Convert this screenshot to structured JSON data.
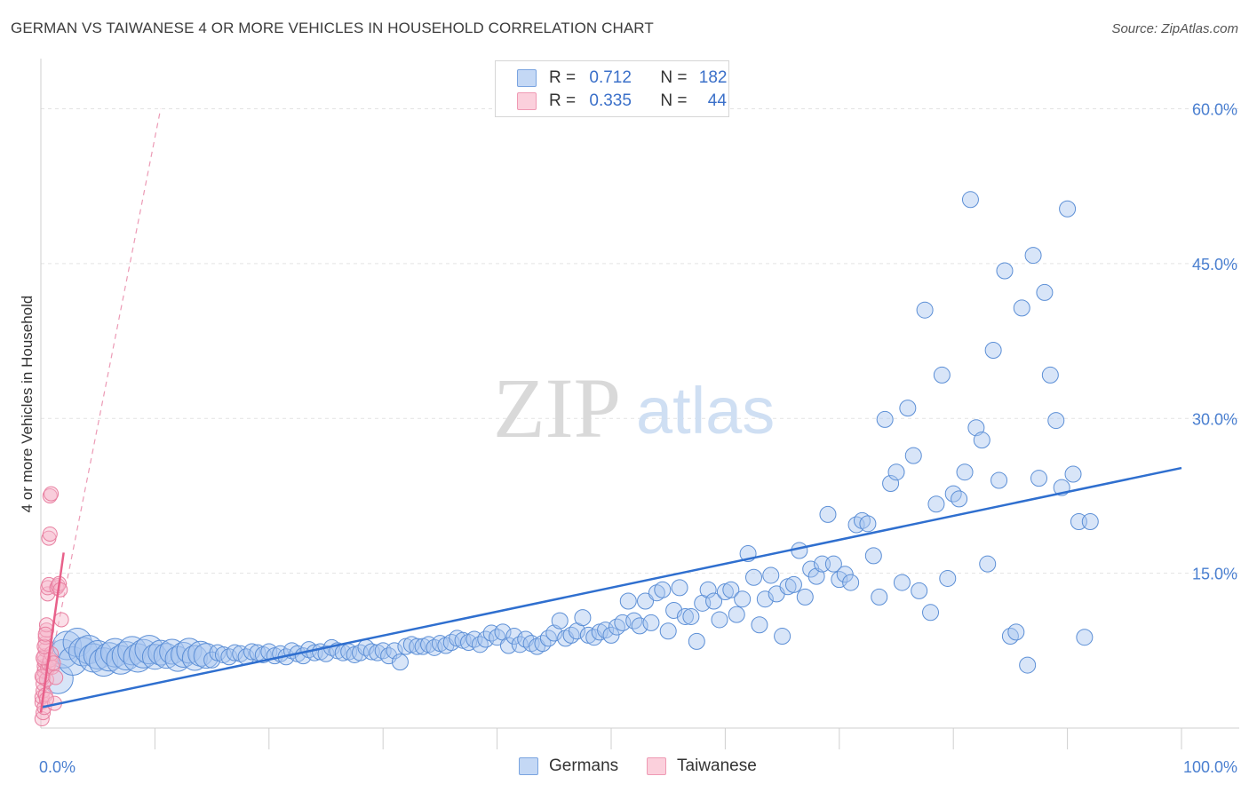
{
  "header": {
    "title": "GERMAN VS TAIWANESE 4 OR MORE VEHICLES IN HOUSEHOLD CORRELATION CHART",
    "source": "Source: ZipAtlas.com"
  },
  "watermark": {
    "zip": "ZIP",
    "atlas": "atlas"
  },
  "legend": {
    "rows": [
      {
        "r_label": "R =",
        "r_value": "0.712",
        "n_label": "N =",
        "n_value": "182",
        "color": "#a9c6f0"
      },
      {
        "r_label": "R =",
        "r_value": "0.335",
        "n_label": "N =",
        "n_value": "44",
        "color": "#f6b8cb"
      }
    ]
  },
  "bottom_legend": [
    {
      "label": "Germans",
      "color": "#a9c6f0"
    },
    {
      "label": "Taiwanese",
      "color": "#f6b8cb"
    }
  ],
  "chart_data": {
    "type": "scatter",
    "xlabel": "",
    "ylabel": "4 or more Vehicles in Household",
    "xlim": [
      0,
      100
    ],
    "ylim": [
      0,
      64
    ],
    "y_ticks": [
      {
        "value": 15,
        "label": "15.0%"
      },
      {
        "value": 30,
        "label": "30.0%"
      },
      {
        "value": 45,
        "label": "45.0%"
      },
      {
        "value": 60,
        "label": "60.0%"
      }
    ],
    "x_tick_labels": [
      {
        "value": 0,
        "label": "0.0%"
      },
      {
        "value": 100,
        "label": "100.0%"
      }
    ],
    "grid": true,
    "series": [
      {
        "name": "Germans",
        "color": "#a9c6f0",
        "stroke": "#5c8fd6",
        "trend": {
          "x": [
            0,
            100
          ],
          "y": [
            2.0,
            25.2
          ],
          "color": "#2f6fcf"
        },
        "points": [
          [
            1.5,
            4.8
          ],
          [
            2.0,
            7.2
          ],
          [
            2.3,
            8.0
          ],
          [
            2.8,
            6.5
          ],
          [
            3.2,
            8.3
          ],
          [
            3.7,
            7.4
          ],
          [
            4.2,
            7.6
          ],
          [
            4.6,
            6.8
          ],
          [
            5.0,
            7.1
          ],
          [
            5.5,
            6.4
          ],
          [
            6.0,
            6.9
          ],
          [
            6.5,
            7.3
          ],
          [
            7.0,
            6.6
          ],
          [
            7.5,
            7.0
          ],
          [
            8.0,
            7.5
          ],
          [
            8.5,
            6.8
          ],
          [
            9.0,
            7.2
          ],
          [
            9.5,
            7.6
          ],
          [
            10.0,
            6.9
          ],
          [
            10.5,
            7.3
          ],
          [
            11.0,
            7.0
          ],
          [
            11.5,
            7.4
          ],
          [
            12.0,
            6.7
          ],
          [
            12.5,
            7.1
          ],
          [
            13.0,
            7.5
          ],
          [
            13.5,
            6.8
          ],
          [
            14.0,
            7.2
          ],
          [
            14.5,
            7.0
          ],
          [
            15.0,
            6.6
          ],
          [
            15.5,
            7.3
          ],
          [
            16.0,
            7.1
          ],
          [
            16.5,
            6.9
          ],
          [
            17.0,
            7.3
          ],
          [
            17.5,
            7.2
          ],
          [
            18.0,
            6.9
          ],
          [
            18.5,
            7.4
          ],
          [
            19.0,
            7.3
          ],
          [
            19.5,
            7.1
          ],
          [
            20.0,
            7.4
          ],
          [
            20.5,
            7.0
          ],
          [
            21.0,
            7.2
          ],
          [
            21.5,
            6.9
          ],
          [
            22.0,
            7.5
          ],
          [
            22.5,
            7.2
          ],
          [
            23.0,
            7.0
          ],
          [
            23.5,
            7.6
          ],
          [
            24.0,
            7.3
          ],
          [
            24.5,
            7.4
          ],
          [
            25.0,
            7.2
          ],
          [
            25.5,
            7.8
          ],
          [
            26.0,
            7.5
          ],
          [
            26.5,
            7.3
          ],
          [
            27.0,
            7.4
          ],
          [
            27.5,
            7.1
          ],
          [
            28.0,
            7.3
          ],
          [
            28.5,
            7.8
          ],
          [
            29.0,
            7.4
          ],
          [
            29.5,
            7.3
          ],
          [
            30.0,
            7.5
          ],
          [
            30.5,
            7.0
          ],
          [
            31.0,
            7.5
          ],
          [
            31.5,
            6.4
          ],
          [
            32.0,
            7.9
          ],
          [
            32.5,
            8.1
          ],
          [
            33.0,
            7.9
          ],
          [
            33.5,
            7.9
          ],
          [
            34.0,
            8.1
          ],
          [
            34.5,
            7.8
          ],
          [
            35.0,
            8.2
          ],
          [
            35.5,
            8.0
          ],
          [
            36.0,
            8.3
          ],
          [
            36.5,
            8.7
          ],
          [
            37.0,
            8.5
          ],
          [
            37.5,
            8.3
          ],
          [
            38.0,
            8.6
          ],
          [
            38.5,
            8.1
          ],
          [
            39.0,
            8.6
          ],
          [
            39.5,
            9.2
          ],
          [
            40.0,
            8.8
          ],
          [
            40.5,
            9.3
          ],
          [
            41.0,
            8.0
          ],
          [
            41.5,
            8.9
          ],
          [
            42.0,
            8.1
          ],
          [
            42.5,
            8.6
          ],
          [
            43.0,
            8.2
          ],
          [
            43.5,
            7.9
          ],
          [
            44.0,
            8.2
          ],
          [
            44.5,
            8.7
          ],
          [
            45.0,
            9.2
          ],
          [
            45.5,
            10.4
          ],
          [
            46.0,
            8.7
          ],
          [
            46.5,
            9.0
          ],
          [
            47.0,
            9.4
          ],
          [
            47.5,
            10.7
          ],
          [
            48.0,
            9.0
          ],
          [
            48.5,
            8.8
          ],
          [
            49.0,
            9.3
          ],
          [
            49.5,
            9.5
          ],
          [
            50.0,
            9.0
          ],
          [
            50.5,
            9.8
          ],
          [
            51.0,
            10.2
          ],
          [
            51.5,
            12.3
          ],
          [
            52.0,
            10.4
          ],
          [
            52.5,
            9.9
          ],
          [
            53.0,
            12.3
          ],
          [
            53.5,
            10.2
          ],
          [
            54.0,
            13.1
          ],
          [
            54.5,
            13.4
          ],
          [
            55.0,
            9.4
          ],
          [
            55.5,
            11.4
          ],
          [
            56.0,
            13.6
          ],
          [
            56.5,
            10.8
          ],
          [
            57.0,
            10.8
          ],
          [
            57.5,
            8.4
          ],
          [
            58.0,
            12.1
          ],
          [
            58.5,
            13.4
          ],
          [
            59.0,
            12.3
          ],
          [
            59.5,
            10.5
          ],
          [
            60.0,
            13.2
          ],
          [
            60.5,
            13.4
          ],
          [
            61.0,
            11.0
          ],
          [
            61.5,
            12.5
          ],
          [
            62.0,
            16.9
          ],
          [
            62.5,
            14.6
          ],
          [
            63.0,
            10.0
          ],
          [
            63.5,
            12.5
          ],
          [
            64.0,
            14.8
          ],
          [
            64.5,
            13.0
          ],
          [
            65.0,
            8.9
          ],
          [
            65.5,
            13.7
          ],
          [
            66.0,
            13.9
          ],
          [
            66.5,
            17.2
          ],
          [
            67.0,
            12.7
          ],
          [
            67.5,
            15.4
          ],
          [
            68.0,
            14.7
          ],
          [
            68.5,
            15.9
          ],
          [
            69.0,
            20.7
          ],
          [
            69.5,
            15.9
          ],
          [
            70.0,
            14.4
          ],
          [
            70.5,
            14.9
          ],
          [
            71.0,
            14.1
          ],
          [
            71.5,
            19.7
          ],
          [
            72.0,
            20.1
          ],
          [
            72.5,
            19.8
          ],
          [
            73.0,
            16.7
          ],
          [
            73.5,
            12.7
          ],
          [
            74.0,
            29.9
          ],
          [
            74.5,
            23.7
          ],
          [
            75.0,
            24.8
          ],
          [
            75.5,
            14.1
          ],
          [
            76.0,
            31.0
          ],
          [
            76.5,
            26.4
          ],
          [
            77.0,
            13.3
          ],
          [
            77.5,
            40.5
          ],
          [
            78.0,
            11.2
          ],
          [
            78.5,
            21.7
          ],
          [
            79.0,
            34.2
          ],
          [
            79.5,
            14.5
          ],
          [
            80.0,
            22.7
          ],
          [
            80.5,
            22.2
          ],
          [
            81.0,
            24.8
          ],
          [
            81.5,
            51.2
          ],
          [
            82.0,
            29.1
          ],
          [
            82.5,
            27.9
          ],
          [
            83.0,
            15.9
          ],
          [
            83.5,
            36.6
          ],
          [
            84.0,
            24.0
          ],
          [
            84.5,
            44.3
          ],
          [
            85.0,
            8.9
          ],
          [
            85.5,
            9.3
          ],
          [
            86.0,
            40.7
          ],
          [
            86.5,
            6.1
          ],
          [
            87.0,
            45.8
          ],
          [
            87.5,
            24.2
          ],
          [
            88.0,
            42.2
          ],
          [
            88.5,
            34.2
          ],
          [
            89.0,
            29.8
          ],
          [
            89.5,
            23.3
          ],
          [
            90.0,
            50.3
          ],
          [
            90.5,
            24.6
          ],
          [
            91.0,
            20.0
          ],
          [
            91.5,
            8.8
          ],
          [
            92.0,
            20.0
          ]
        ]
      },
      {
        "name": "Taiwanese",
        "color": "#f6b8cb",
        "stroke": "#e87fa0",
        "trend": {
          "x": [
            0,
            2.0
          ],
          "y": [
            1.5,
            17.0
          ],
          "color": "#e8608a"
        },
        "trend_extension": {
          "x": [
            0,
            10.5
          ],
          "y": [
            1.5,
            60.0
          ]
        },
        "points": [
          [
            0.1,
            0.9
          ],
          [
            0.1,
            2.5
          ],
          [
            0.1,
            3.0
          ],
          [
            0.2,
            3.6
          ],
          [
            0.2,
            4.3
          ],
          [
            0.2,
            4.9
          ],
          [
            0.3,
            5.5
          ],
          [
            0.3,
            6.0
          ],
          [
            0.3,
            6.5
          ],
          [
            0.3,
            7.0
          ],
          [
            0.4,
            7.6
          ],
          [
            0.4,
            8.2
          ],
          [
            0.4,
            8.8
          ],
          [
            0.5,
            9.5
          ],
          [
            0.5,
            10.0
          ],
          [
            0.6,
            13.0
          ],
          [
            0.6,
            13.6
          ],
          [
            0.7,
            13.9
          ],
          [
            0.7,
            18.4
          ],
          [
            0.8,
            18.8
          ],
          [
            0.8,
            22.5
          ],
          [
            0.9,
            22.7
          ],
          [
            0.2,
            1.5
          ],
          [
            0.3,
            2.0
          ],
          [
            0.4,
            3.2
          ],
          [
            0.5,
            4.7
          ],
          [
            0.6,
            5.8
          ],
          [
            0.7,
            6.2
          ],
          [
            0.8,
            6.6
          ],
          [
            0.9,
            7.2
          ],
          [
            1.0,
            5.9
          ],
          [
            1.1,
            6.3
          ],
          [
            1.2,
            2.4
          ],
          [
            1.3,
            4.9
          ],
          [
            1.4,
            13.6
          ],
          [
            1.5,
            13.8
          ],
          [
            1.6,
            14.0
          ],
          [
            1.7,
            13.4
          ],
          [
            1.8,
            10.5
          ],
          [
            0.1,
            5.0
          ],
          [
            0.2,
            6.8
          ],
          [
            0.3,
            7.9
          ],
          [
            0.4,
            9.1
          ],
          [
            0.5,
            2.8
          ]
        ]
      }
    ]
  }
}
